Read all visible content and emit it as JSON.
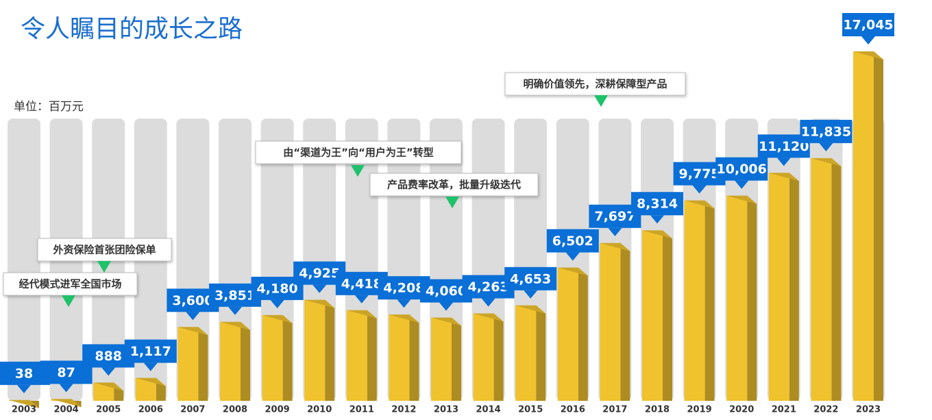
{
  "chart_data": {
    "type": "bar",
    "title": "令人瞩目的成长之路",
    "subtitle": "单位：百万元",
    "categories": [
      "2003",
      "2004",
      "2005",
      "2006",
      "2007",
      "2008",
      "2009",
      "2010",
      "2011",
      "2012",
      "2013",
      "2014",
      "2015",
      "2016",
      "2017",
      "2018",
      "2019",
      "2020",
      "2021",
      "2022",
      "2023"
    ],
    "values": [
      38,
      87,
      888,
      1117,
      3600,
      3851,
      4180,
      4925,
      4418,
      4208,
      4060,
      4263,
      4653,
      6502,
      7697,
      8314,
      9775,
      10006,
      11120,
      11835,
      17045
    ],
    "value_labels": [
      "38",
      "87",
      "888",
      "1,117",
      "3,600",
      "3,851",
      "4,180",
      "4,925",
      "4,418",
      "4,208",
      "4,060",
      "4,263",
      "4,653",
      "6,502",
      "7,697",
      "8,314",
      "9,775",
      "10,006",
      "11,120",
      "11,835",
      "17,045"
    ],
    "color": "#f0c22e",
    "label_color": "#0a6fd6",
    "annotations": [
      "外资保险首张团险保单",
      "经代模式进军全国市场",
      "由“渠道为王”向“用户为王”转型",
      "产品费率改革，批量升级迭代",
      "明确价值领先，深耕保障型产品"
    ]
  }
}
